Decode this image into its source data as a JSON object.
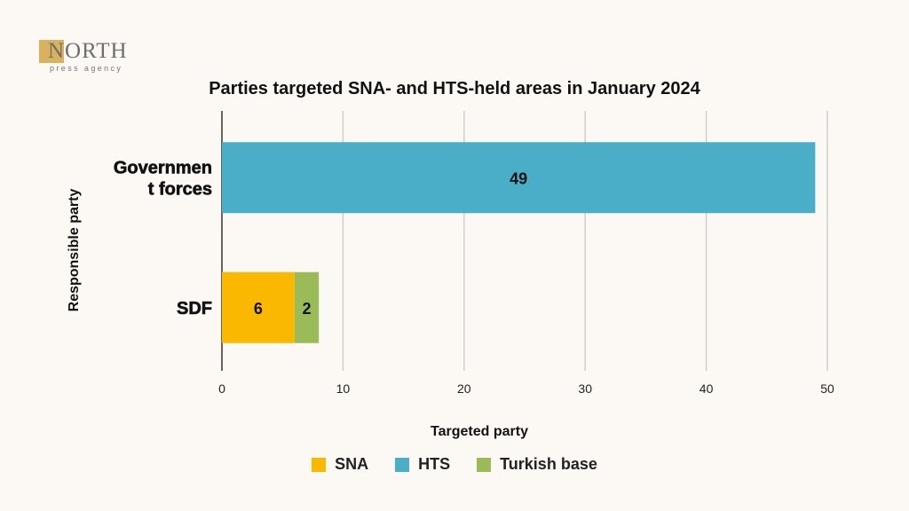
{
  "logo": {
    "word": "NORTH",
    "sub": "press agency"
  },
  "chart_data": {
    "type": "bar",
    "orientation": "horizontal",
    "stacked": true,
    "title": "Parties targeted SNA- and HTS-held areas in January 2024",
    "xlabel": "Targeted party",
    "ylabel": "Responsible party",
    "categories": [
      "Government forces",
      "SDF"
    ],
    "category_lines": [
      [
        "Governmen",
        "t forces"
      ],
      [
        "SDF"
      ]
    ],
    "xlim": [
      0,
      50
    ],
    "xticks": [
      0,
      10,
      20,
      30,
      40,
      50
    ],
    "grid": true,
    "legend_position": "bottom",
    "series": [
      {
        "name": "SNA",
        "color": "#fbb800",
        "values": [
          0,
          6
        ]
      },
      {
        "name": "HTS",
        "color": "#4baec9",
        "values": [
          49,
          0
        ]
      },
      {
        "name": "Turkish base",
        "color": "#9bbb59",
        "values": [
          0,
          2
        ]
      }
    ]
  }
}
